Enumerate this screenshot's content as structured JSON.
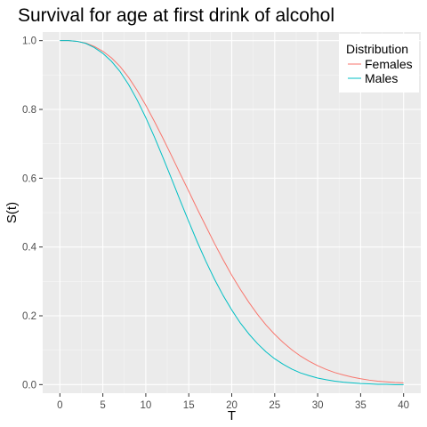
{
  "chart_data": {
    "type": "line",
    "title": "Survival for age at first drink of alcohol",
    "xlabel": "T",
    "ylabel": "S(t)",
    "xlim": [
      -2,
      42
    ],
    "ylim": [
      -0.025,
      1.025
    ],
    "x_ticks": [
      0,
      5,
      10,
      15,
      20,
      25,
      30,
      35,
      40
    ],
    "y_ticks": [
      0.0,
      0.2,
      0.4,
      0.6,
      0.8,
      1.0
    ],
    "x_tick_labels": [
      "0",
      "5",
      "10",
      "15",
      "20",
      "25",
      "30",
      "35",
      "40"
    ],
    "y_tick_labels": [
      "0.0",
      "0.2",
      "0.4",
      "0.6",
      "0.8",
      "1.0"
    ],
    "grid": true,
    "legend": {
      "title": "Distribution",
      "position": "top-right"
    },
    "x": [
      0,
      1,
      2,
      3,
      4,
      5,
      6,
      7,
      8,
      9,
      10,
      11,
      12,
      13,
      14,
      15,
      16,
      17,
      18,
      19,
      20,
      21,
      22,
      23,
      24,
      25,
      26,
      27,
      28,
      29,
      30,
      31,
      32,
      33,
      34,
      35,
      36,
      37,
      38,
      39,
      40
    ],
    "series": [
      {
        "name": "Females",
        "color": "#F8766D",
        "values": [
          1.0,
          1.0,
          0.998,
          0.993,
          0.983,
          0.969,
          0.95,
          0.925,
          0.893,
          0.855,
          0.812,
          0.765,
          0.716,
          0.665,
          0.613,
          0.562,
          0.51,
          0.46,
          0.41,
          0.363,
          0.318,
          0.277,
          0.239,
          0.204,
          0.173,
          0.146,
          0.122,
          0.101,
          0.083,
          0.068,
          0.055,
          0.044,
          0.035,
          0.028,
          0.022,
          0.017,
          0.013,
          0.01,
          0.008,
          0.006,
          0.005
        ]
      },
      {
        "name": "Males",
        "color": "#00BFC4",
        "values": [
          1.0,
          1.0,
          0.998,
          0.992,
          0.98,
          0.963,
          0.94,
          0.91,
          0.872,
          0.827,
          0.776,
          0.72,
          0.66,
          0.598,
          0.535,
          0.474,
          0.414,
          0.358,
          0.306,
          0.259,
          0.217,
          0.179,
          0.147,
          0.119,
          0.095,
          0.075,
          0.059,
          0.045,
          0.034,
          0.026,
          0.019,
          0.014,
          0.01,
          0.007,
          0.005,
          0.003,
          0.002,
          0.001,
          0.001,
          0.0,
          0.0
        ]
      }
    ]
  }
}
